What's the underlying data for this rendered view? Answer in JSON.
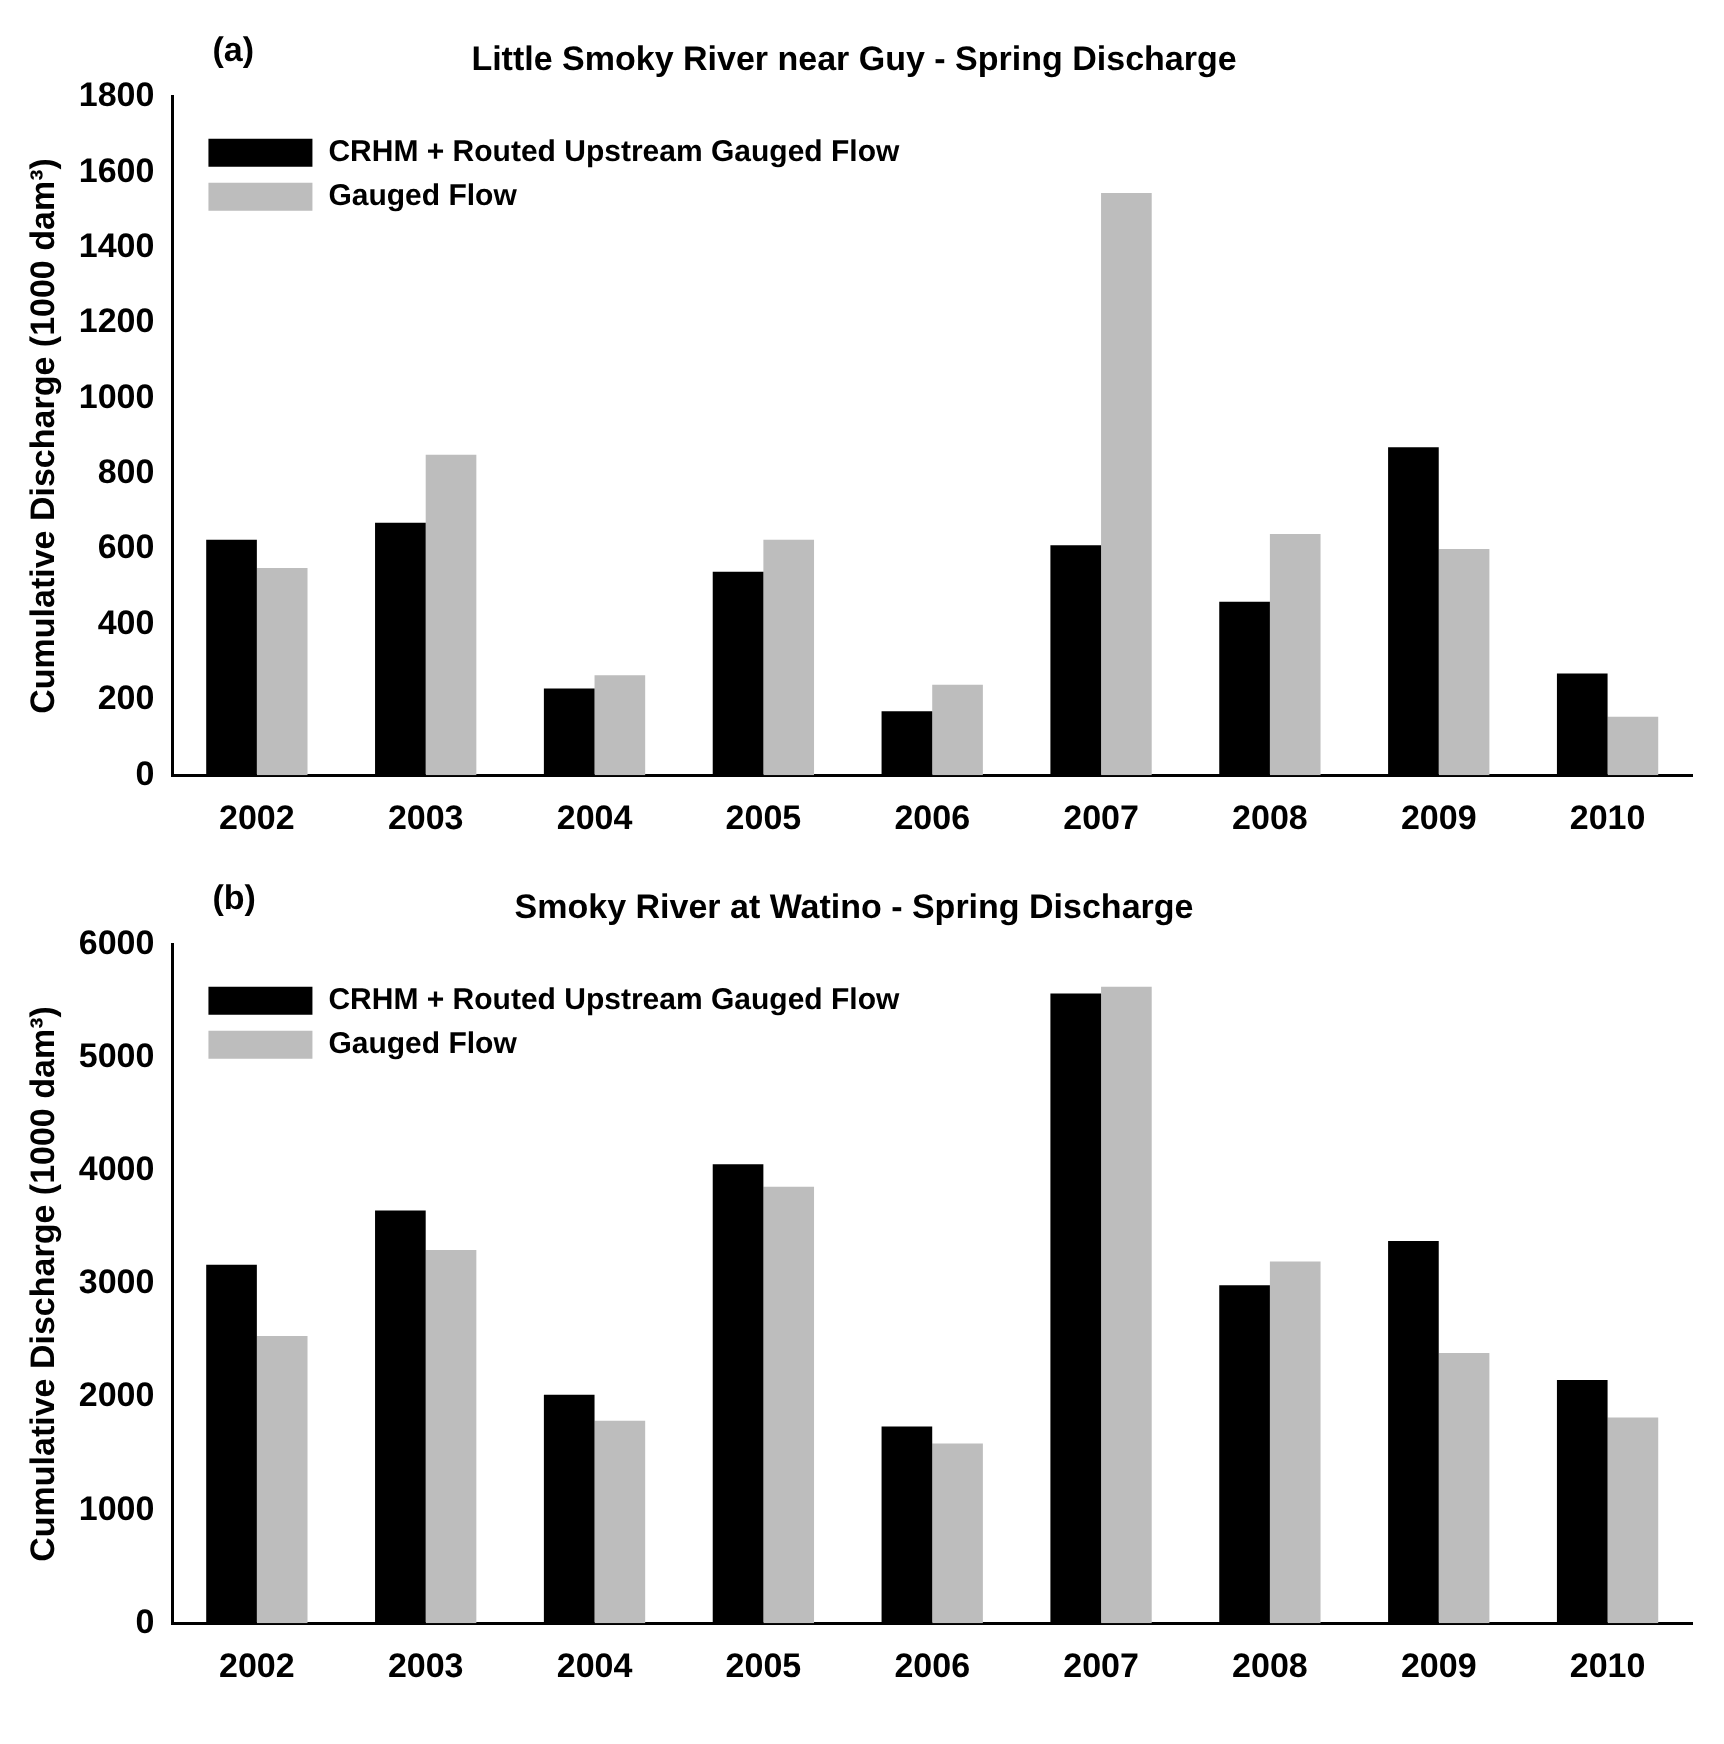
{
  "chart_data": [
    {
      "type": "bar",
      "title": "Little Smoky River near Guy - Spring Discharge",
      "annotations": [
        "(a)"
      ],
      "ylabel": "Cumulative Discharge (1000 dam³)",
      "categories": [
        "2002",
        "2003",
        "2004",
        "2005",
        "2006",
        "2007",
        "2008",
        "2009",
        "2010"
      ],
      "series": [
        {
          "name": "CRHM + Routed Upstream Gauged Flow",
          "color": "#000000",
          "values": [
            625,
            670,
            230,
            540,
            170,
            610,
            460,
            870,
            270
          ]
        },
        {
          "name": "Gauged Flow",
          "color": "#bdbdbd",
          "values": [
            550,
            850,
            265,
            625,
            240,
            1545,
            640,
            600,
            155
          ]
        }
      ],
      "ylim": [
        0,
        1800
      ],
      "yticks": [
        0,
        200,
        400,
        600,
        800,
        1000,
        1200,
        1400,
        1600,
        1800
      ],
      "grid": false,
      "legend": "top left"
    },
    {
      "type": "bar",
      "title": "Smoky River at Watino - Spring Discharge",
      "annotations": [
        "(b)"
      ],
      "ylabel": "Cumulative Discharge (1000 dam³)",
      "categories": [
        "2002",
        "2003",
        "2004",
        "2005",
        "2006",
        "2007",
        "2008",
        "2009",
        "2010"
      ],
      "series": [
        {
          "name": "CRHM + Routed Upstream Gauged Flow",
          "color": "#000000",
          "values": [
            3170,
            3650,
            2020,
            4060,
            1740,
            5570,
            2990,
            3380,
            2150
          ]
        },
        {
          "name": "Gauged Flow",
          "color": "#bdbdbd",
          "values": [
            2540,
            3300,
            1790,
            3860,
            1590,
            5630,
            3200,
            2390,
            1820
          ]
        }
      ],
      "ylim": [
        0,
        6000
      ],
      "yticks": [
        0,
        1000,
        2000,
        3000,
        4000,
        5000,
        6000
      ],
      "grid": false,
      "legend": "top left"
    }
  ]
}
